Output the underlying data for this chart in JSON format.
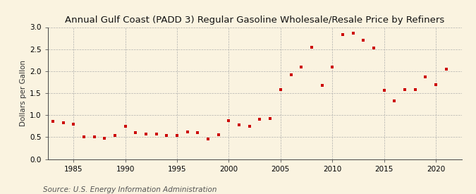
{
  "title": "Annual Gulf Coast (PADD 3) Regular Gasoline Wholesale/Resale Price by Refiners",
  "ylabel": "Dollars per Gallon",
  "source": "Source: U.S. Energy Information Administration",
  "background_color": "#faf3e0",
  "dot_color": "#cc0000",
  "xlim": [
    1982.5,
    2022.5
  ],
  "ylim": [
    0.0,
    3.0
  ],
  "yticks": [
    0.0,
    0.5,
    1.0,
    1.5,
    2.0,
    2.5,
    3.0
  ],
  "xticks": [
    1985,
    1990,
    1995,
    2000,
    2005,
    2010,
    2015,
    2020
  ],
  "years": [
    1983,
    1984,
    1985,
    1986,
    1987,
    1988,
    1989,
    1990,
    1991,
    1992,
    1993,
    1994,
    1995,
    1996,
    1997,
    1998,
    1999,
    2000,
    2001,
    2002,
    2003,
    2004,
    2005,
    2006,
    2007,
    2008,
    2009,
    2010,
    2011,
    2012,
    2013,
    2014,
    2015,
    2016,
    2017,
    2018,
    2019,
    2020,
    2021
  ],
  "values": [
    0.86,
    0.83,
    0.8,
    0.5,
    0.5,
    0.48,
    0.53,
    0.75,
    0.6,
    0.57,
    0.57,
    0.53,
    0.53,
    0.62,
    0.6,
    0.46,
    0.55,
    0.88,
    0.78,
    0.75,
    0.9,
    0.92,
    1.58,
    1.92,
    2.1,
    2.55,
    1.67,
    2.09,
    2.83,
    2.86,
    2.7,
    2.52,
    1.56,
    1.33,
    1.58,
    1.58,
    1.87,
    1.7,
    2.05
  ],
  "title_fontsize": 9.5,
  "label_fontsize": 7.5,
  "source_fontsize": 7.5,
  "tick_fontsize": 7.5,
  "marker_size": 10
}
